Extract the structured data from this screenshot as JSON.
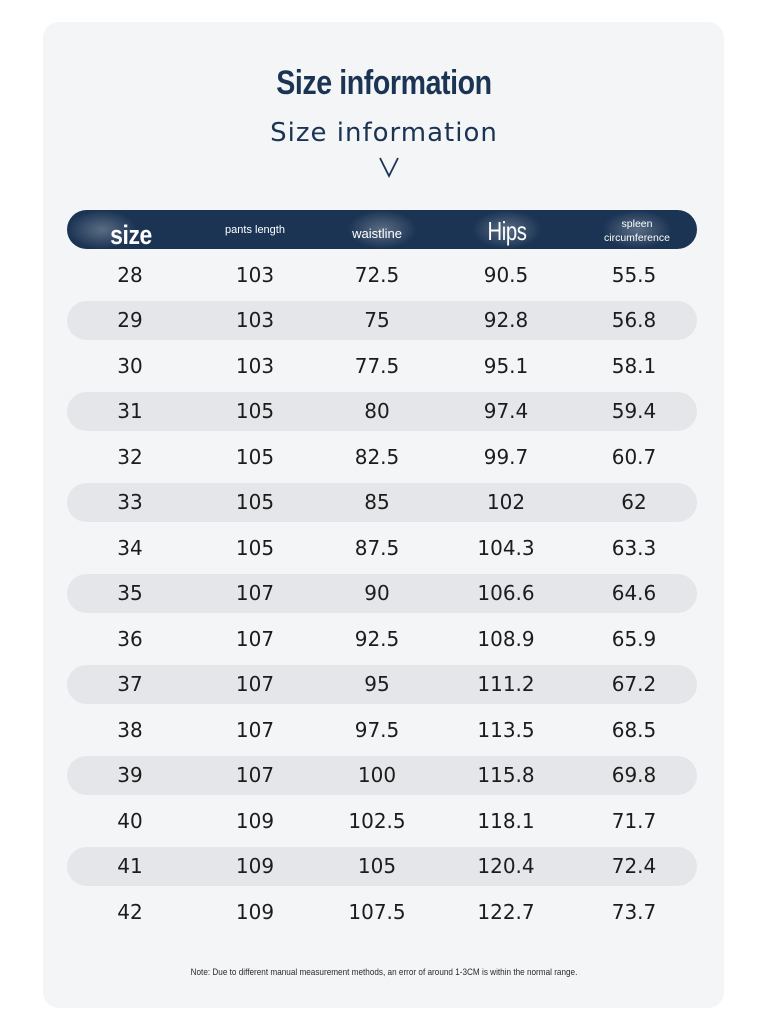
{
  "title": "Size information",
  "subtitle": "Size information",
  "columns": [
    "size",
    "pants length",
    "waistline",
    "Hips",
    "spleen circumference"
  ],
  "rows": [
    [
      "28",
      "103",
      "72.5",
      "90.5",
      "55.5"
    ],
    [
      "29",
      "103",
      "75",
      "92.8",
      "56.8"
    ],
    [
      "30",
      "103",
      "77.5",
      "95.1",
      "58.1"
    ],
    [
      "31",
      "105",
      "80",
      "97.4",
      "59.4"
    ],
    [
      "32",
      "105",
      "82.5",
      "99.7",
      "60.7"
    ],
    [
      "33",
      "105",
      "85",
      "102",
      "62"
    ],
    [
      "34",
      "105",
      "87.5",
      "104.3",
      "63.3"
    ],
    [
      "35",
      "107",
      "90",
      "106.6",
      "64.6"
    ],
    [
      "36",
      "107",
      "92.5",
      "108.9",
      "65.9"
    ],
    [
      "37",
      "107",
      "95",
      "111.2",
      "67.2"
    ],
    [
      "38",
      "107",
      "97.5",
      "113.5",
      "68.5"
    ],
    [
      "39",
      "107",
      "100",
      "115.8",
      "69.8"
    ],
    [
      "40",
      "109",
      "102.5",
      "118.1",
      "71.7"
    ],
    [
      "41",
      "109",
      "105",
      "120.4",
      "72.4"
    ],
    [
      "42",
      "109",
      "107.5",
      "122.7",
      "73.7"
    ]
  ],
  "note": "Note: Due to different manual measurement methods, an error of around 1-3CM is within the normal range.",
  "colors": {
    "header_bg": "#1b3454",
    "title": "#1b3454",
    "row_shade": "#e4e6e9",
    "card_bg": "#f4f5f7"
  },
  "icons": {
    "chevron": "chevron-down-icon"
  }
}
